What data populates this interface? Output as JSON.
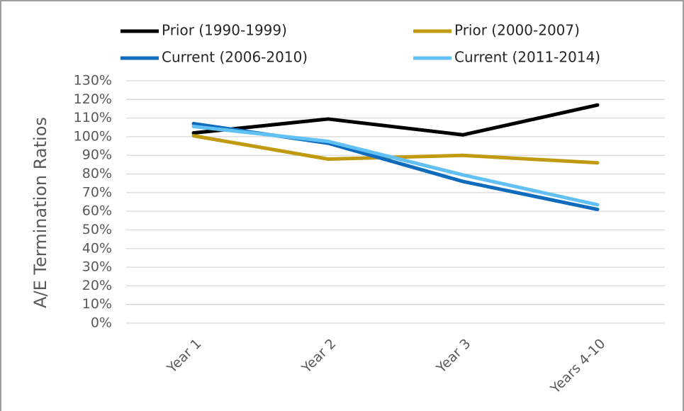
{
  "chart_data": {
    "type": "line",
    "y_label": "A/E Termination Ratios",
    "categories": [
      "Year 1",
      "Year 2",
      "Year 3",
      "Years 4-10"
    ],
    "series": [
      {
        "name": "Prior (1990-1999)",
        "color": "#000000",
        "values": [
          102,
          109.5,
          101,
          117
        ]
      },
      {
        "name": "Prior (2000-2007)",
        "color": "#c09a10",
        "values": [
          100.5,
          88,
          90,
          86
        ]
      },
      {
        "name": "Current (2006-2010)",
        "color": "#0f6cbd",
        "values": [
          107,
          96.5,
          76,
          61
        ]
      },
      {
        "name": "Current (2011-2014)",
        "color": "#62c1f4",
        "values": [
          105.5,
          97.5,
          79.5,
          63.5
        ]
      }
    ],
    "ylim": [
      0,
      130
    ],
    "yticks": [
      {
        "value": 0,
        "label": "0%"
      },
      {
        "value": 10,
        "label": "10%"
      },
      {
        "value": 20,
        "label": "20%"
      },
      {
        "value": 30,
        "label": "30%"
      },
      {
        "value": 40,
        "label": "40%"
      },
      {
        "value": 50,
        "label": "50%"
      },
      {
        "value": 60,
        "label": "60%"
      },
      {
        "value": 70,
        "label": "70%"
      },
      {
        "value": 80,
        "label": "80%"
      },
      {
        "value": 90,
        "label": "90%"
      },
      {
        "value": 100,
        "label": "100%"
      },
      {
        "value": 110,
        "label": "110%"
      },
      {
        "value": 120,
        "label": "120%"
      },
      {
        "value": 130,
        "label": "130%"
      }
    ],
    "grid": true,
    "legend": "top"
  }
}
